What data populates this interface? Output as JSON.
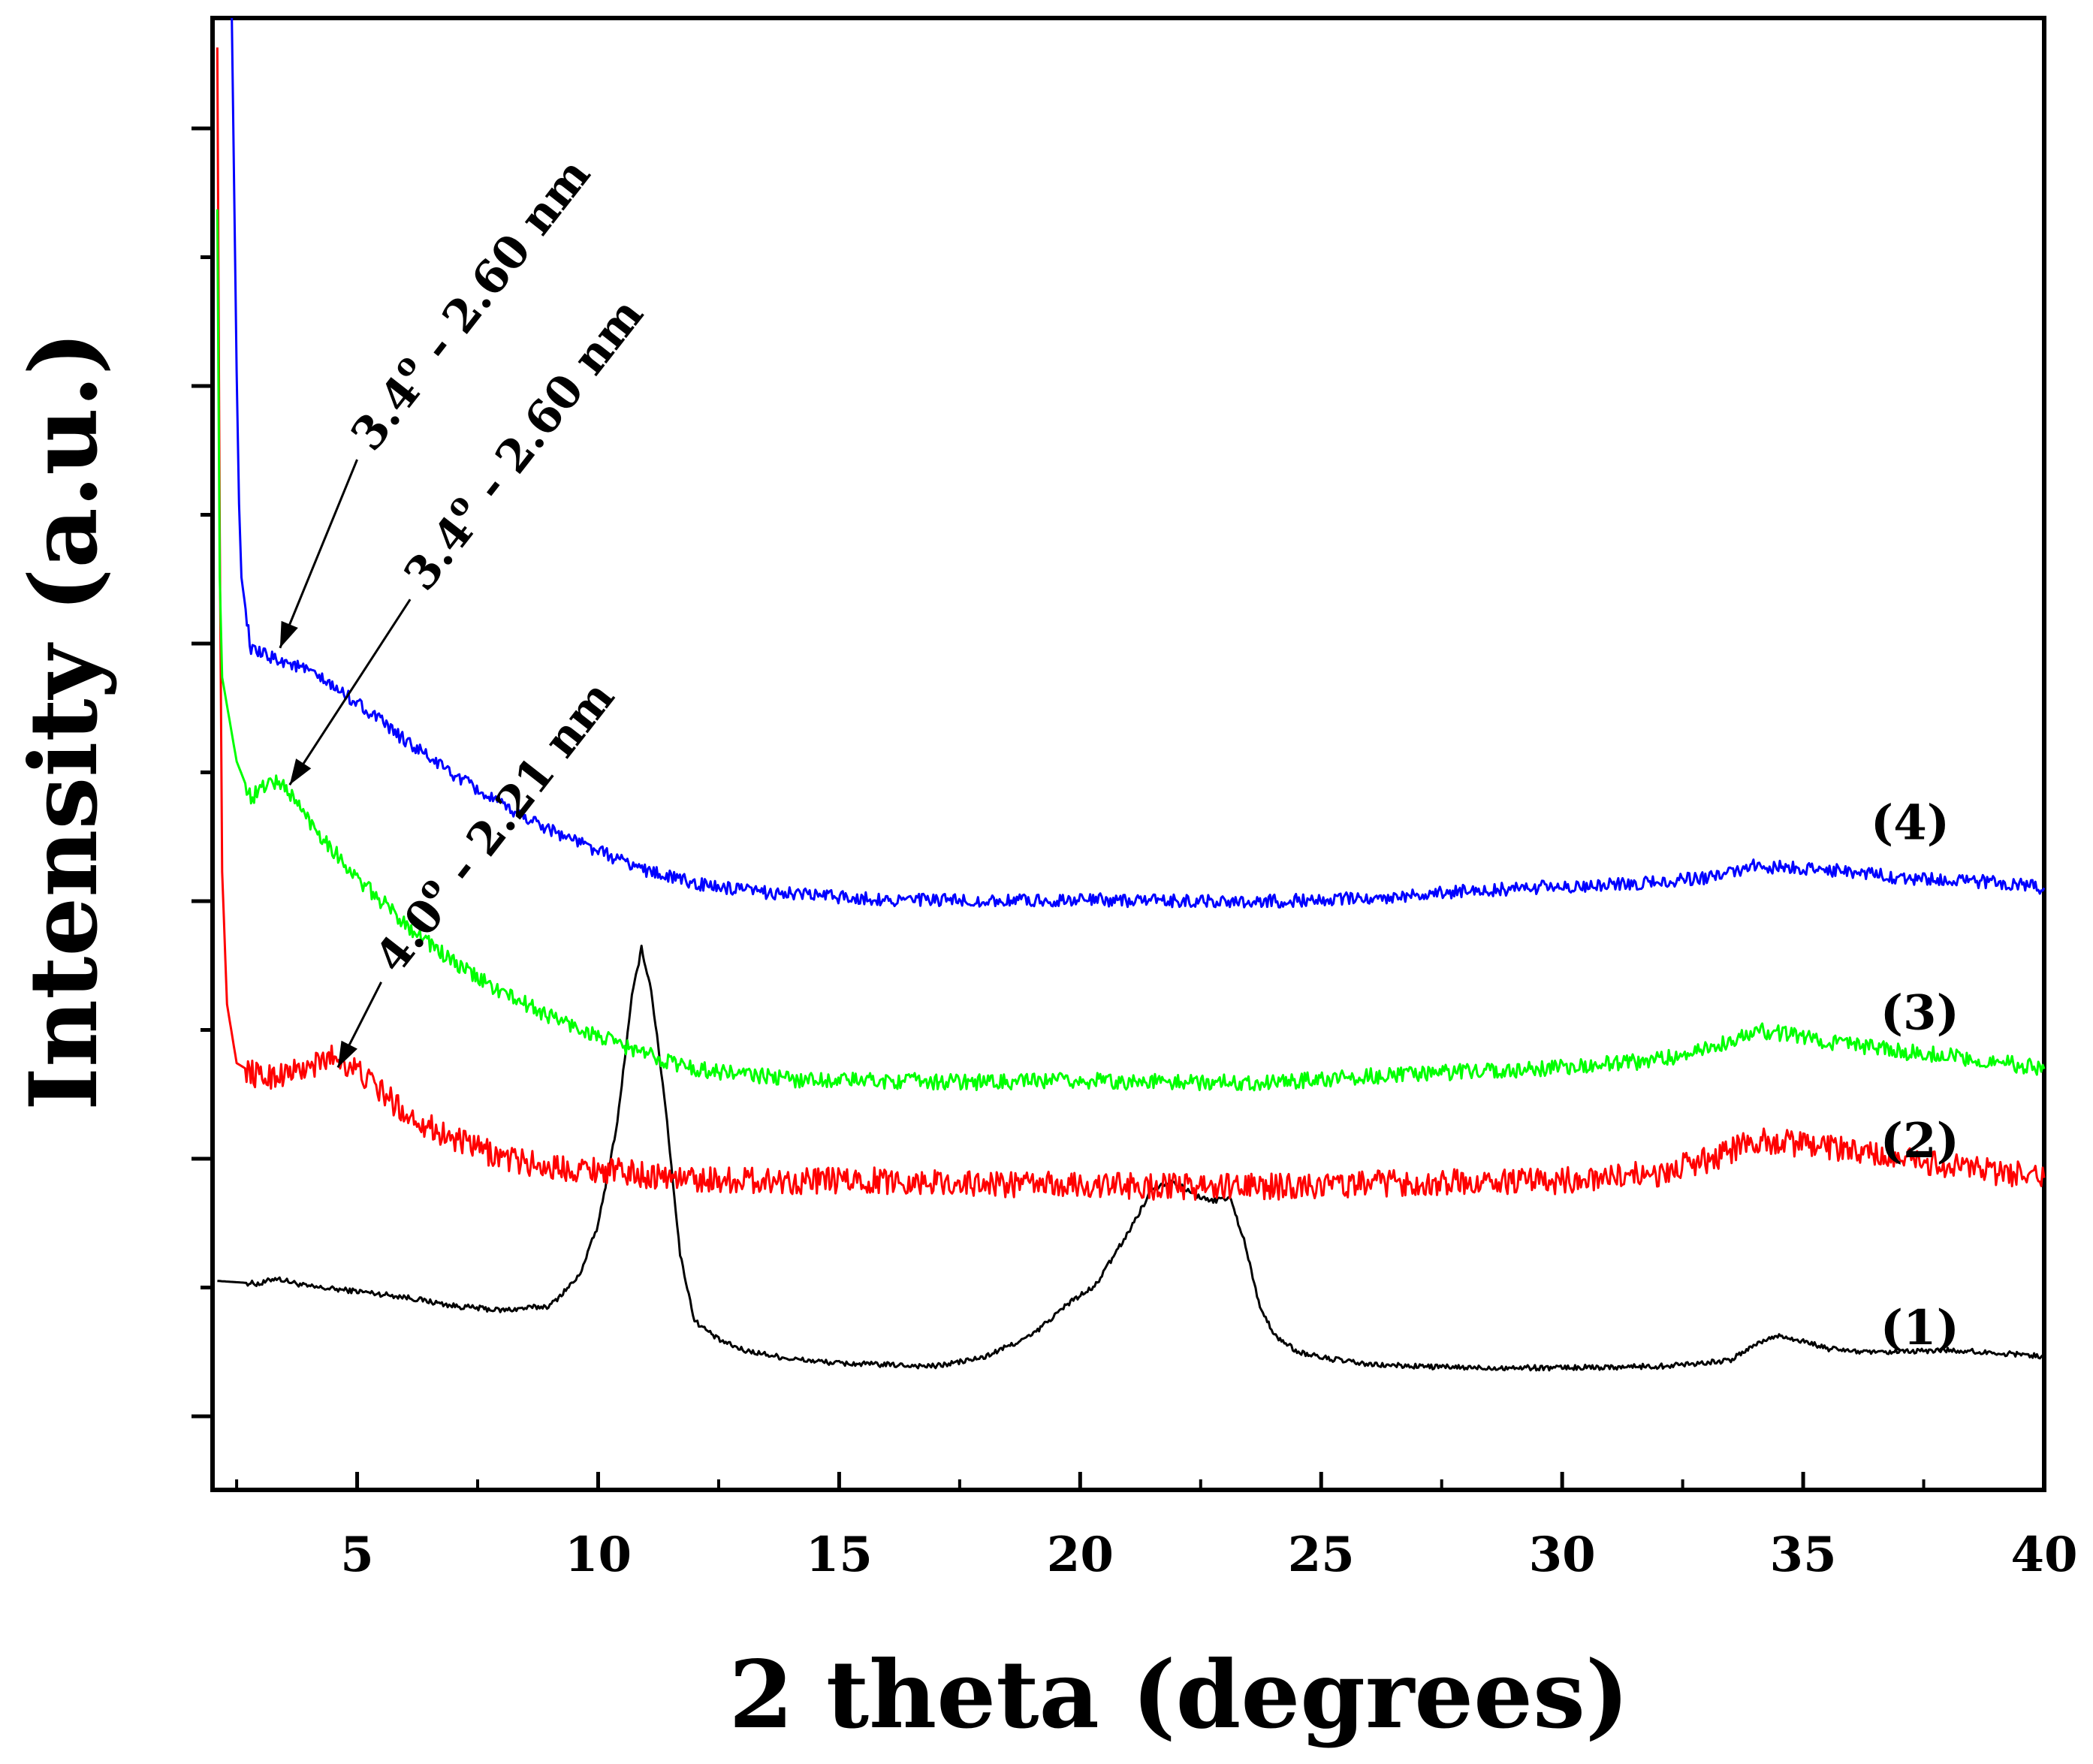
{
  "chart_data": {
    "type": "line",
    "title": "",
    "xlabel": "2 theta (degrees)",
    "ylabel": "Intensity (a.u.)",
    "xlim": [
      2,
      40
    ],
    "ylim": [
      0,
      100
    ],
    "grid": false,
    "x_ticks": [
      5,
      10,
      15,
      20,
      25,
      30,
      35,
      40
    ],
    "x_tick_labels": [
      "5",
      "10",
      "15",
      "20",
      "25",
      "30",
      "35",
      "40"
    ],
    "y_tick_labels_shown": false,
    "series": [
      {
        "name": "(1)",
        "label": "(1)",
        "color": "#000000",
        "points": [
          [
            2.1,
            14.2
          ],
          [
            3,
            14.0
          ],
          [
            3.3,
            14.4
          ],
          [
            4,
            13.8
          ],
          [
            5,
            13.5
          ],
          [
            6,
            13.1
          ],
          [
            7,
            12.5
          ],
          [
            8,
            12.2
          ],
          [
            9,
            12.5
          ],
          [
            9.6,
            14.5
          ],
          [
            10,
            18
          ],
          [
            10.4,
            25
          ],
          [
            10.7,
            33.5
          ],
          [
            10.9,
            36.8
          ],
          [
            11.1,
            34
          ],
          [
            11.4,
            26
          ],
          [
            11.7,
            16
          ],
          [
            12,
            11.5
          ],
          [
            12.5,
            10.2
          ],
          [
            13,
            9.5
          ],
          [
            14,
            8.9
          ],
          [
            15,
            8.6
          ],
          [
            16,
            8.5
          ],
          [
            17,
            8.4
          ],
          [
            18,
            9.0
          ],
          [
            19,
            10.5
          ],
          [
            19.8,
            12.8
          ],
          [
            20.3,
            13.8
          ],
          [
            21,
            17.5
          ],
          [
            21.5,
            20.5
          ],
          [
            21.9,
            21.0
          ],
          [
            22.3,
            20.2
          ],
          [
            22.7,
            19.6
          ],
          [
            23.1,
            19.9
          ],
          [
            23.4,
            17.0
          ],
          [
            23.7,
            12.8
          ],
          [
            24,
            10.6
          ],
          [
            24.5,
            9.4
          ],
          [
            25,
            9.0
          ],
          [
            26,
            8.5
          ],
          [
            28,
            8.3
          ],
          [
            30,
            8.3
          ],
          [
            32,
            8.4
          ],
          [
            33.5,
            8.8
          ],
          [
            34,
            9.9
          ],
          [
            34.5,
            10.5
          ],
          [
            35,
            10.1
          ],
          [
            35.5,
            9.6
          ],
          [
            36.5,
            9.3
          ],
          [
            38,
            9.5
          ],
          [
            40,
            9.1
          ]
        ]
      },
      {
        "name": "(2)",
        "label": "(2)",
        "color": "#ff0000",
        "points": [
          [
            2.1,
            98
          ],
          [
            2.15,
            65
          ],
          [
            2.2,
            42
          ],
          [
            2.3,
            33
          ],
          [
            2.5,
            29.0
          ],
          [
            3,
            28.0
          ],
          [
            4,
            28.6
          ],
          [
            4.5,
            29.5
          ],
          [
            5,
            28.5
          ],
          [
            6,
            25.6
          ],
          [
            7,
            23.8
          ],
          [
            8,
            22.6
          ],
          [
            9,
            21.9
          ],
          [
            10,
            21.8
          ],
          [
            11,
            21.4
          ],
          [
            12,
            21.1
          ],
          [
            14,
            21.0
          ],
          [
            16,
            21.0
          ],
          [
            18,
            20.8
          ],
          [
            20,
            20.7
          ],
          [
            22,
            20.6
          ],
          [
            24,
            20.6
          ],
          [
            26,
            20.8
          ],
          [
            28,
            20.9
          ],
          [
            30,
            21.0
          ],
          [
            32,
            21.5
          ],
          [
            33,
            22.4
          ],
          [
            34,
            23.7
          ],
          [
            35,
            23.5
          ],
          [
            36,
            23.0
          ],
          [
            37,
            22.4
          ],
          [
            38,
            22.0
          ],
          [
            39,
            21.6
          ],
          [
            40,
            21.2
          ]
        ]
      },
      {
        "name": "(3)",
        "label": "(3)",
        "color": "#00ff00",
        "points": [
          [
            2.1,
            87
          ],
          [
            2.15,
            62
          ],
          [
            2.2,
            55.2
          ],
          [
            2.5,
            49.5
          ],
          [
            2.8,
            47.0
          ],
          [
            3.2,
            48.2
          ],
          [
            3.5,
            47.8
          ],
          [
            4,
            45.5
          ],
          [
            5,
            41.5
          ],
          [
            6,
            38.5
          ],
          [
            7,
            35.8
          ],
          [
            8,
            33.8
          ],
          [
            9,
            32.2
          ],
          [
            10,
            30.8
          ],
          [
            11,
            29.6
          ],
          [
            12,
            28.6
          ],
          [
            14,
            27.9
          ],
          [
            16,
            27.8
          ],
          [
            18,
            27.7
          ],
          [
            20,
            27.8
          ],
          [
            22,
            27.7
          ],
          [
            24,
            27.7
          ],
          [
            26,
            28.1
          ],
          [
            28,
            28.4
          ],
          [
            30,
            28.7
          ],
          [
            32,
            29.2
          ],
          [
            33,
            30.0
          ],
          [
            34,
            31.2
          ],
          [
            35,
            30.8
          ],
          [
            36,
            30.2
          ],
          [
            37,
            29.8
          ],
          [
            38,
            29.5
          ],
          [
            39,
            29.1
          ],
          [
            40,
            28.6
          ]
        ]
      },
      {
        "name": "(4)",
        "label": "(4)",
        "color": "#0000ff",
        "points": [
          [
            2.4,
            100
          ],
          [
            2.45,
            88
          ],
          [
            2.5,
            76
          ],
          [
            2.55,
            67
          ],
          [
            2.6,
            62
          ],
          [
            2.8,
            57.0
          ],
          [
            3,
            56.8
          ],
          [
            3.5,
            56.3
          ],
          [
            4,
            55.6
          ],
          [
            5,
            53.5
          ],
          [
            6,
            50.9
          ],
          [
            7,
            48.6
          ],
          [
            8,
            46.5
          ],
          [
            9,
            44.9
          ],
          [
            10,
            43.4
          ],
          [
            11,
            42.1
          ],
          [
            12,
            41.2
          ],
          [
            13,
            40.7
          ],
          [
            14,
            40.5
          ],
          [
            16,
            40.1
          ],
          [
            18,
            40.0
          ],
          [
            20,
            40.1
          ],
          [
            22,
            40.0
          ],
          [
            24,
            40.0
          ],
          [
            26,
            40.2
          ],
          [
            28,
            40.7
          ],
          [
            30,
            41.0
          ],
          [
            32,
            41.3
          ],
          [
            33,
            41.6
          ],
          [
            34,
            42.4
          ],
          [
            35,
            42.2
          ],
          [
            36,
            42.0
          ],
          [
            37,
            41.6
          ],
          [
            38,
            41.4
          ],
          [
            39,
            41.3
          ],
          [
            40,
            40.9
          ]
        ]
      }
    ],
    "series_labels": [
      {
        "series": "(4)",
        "text": "(4)",
        "x": 36.4,
        "y": 44.2
      },
      {
        "series": "(3)",
        "text": "(3)",
        "x": 36.6,
        "y": 31.3
      },
      {
        "series": "(2)",
        "text": "(2)",
        "x": 36.6,
        "y": 22.6
      },
      {
        "series": "(1)",
        "text": "(1)",
        "x": 36.6,
        "y": 9.9
      }
    ],
    "annotations": [
      {
        "series": "(4)",
        "value": "3.4",
        "degree_mark": "o",
        "suffix": " - 2.60 nm",
        "point": [
          3.4,
          57.2
        ],
        "text_anchor": [
          5.0,
          70.0
        ],
        "angle": -52
      },
      {
        "series": "(3)",
        "value": "3.4",
        "degree_mark": "o",
        "suffix": " - 2.60 nm",
        "point": [
          3.6,
          47.9
        ],
        "text_anchor": [
          6.1,
          60.5
        ],
        "angle": -52
      },
      {
        "series": "(2)",
        "value": "4.0",
        "degree_mark": "o",
        "suffix": " - 2.21 nm",
        "point": [
          4.6,
          28.7
        ],
        "text_anchor": [
          5.5,
          34.5
        ],
        "angle": -52
      }
    ]
  }
}
